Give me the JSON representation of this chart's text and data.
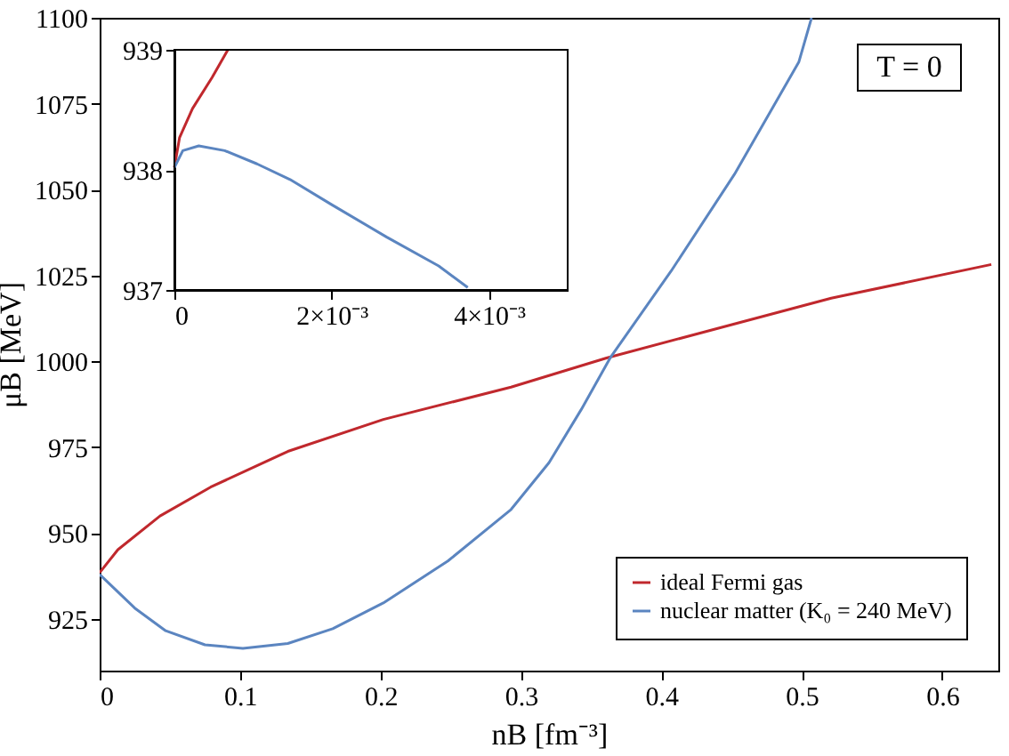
{
  "chart_data": [
    {
      "type": "line",
      "xlabel": "nB [fm⁻³]",
      "ylabel": "μB [MeV]",
      "xlim": [
        0,
        0.64
      ],
      "ylim": [
        910,
        1100
      ],
      "xticks": [
        0,
        0.1,
        0.2,
        0.3,
        0.4,
        0.5,
        0.6
      ],
      "yticks": [
        925,
        950,
        975,
        1000,
        1025,
        1050,
        1075,
        1100
      ],
      "legend": "bottom right",
      "grid": false,
      "annotations": [
        "T = 0"
      ],
      "series": [
        {
          "name": "ideal Fermi gas",
          "color": "#c0282d",
          "x": [
            0,
            0.013,
            0.043,
            0.079,
            0.134,
            0.202,
            0.293,
            0.361,
            0.43,
            0.521,
            0.635
          ],
          "values": [
            938.5,
            945.2,
            955,
            963.4,
            973.8,
            983.1,
            992.5,
            1001,
            1008.5,
            1018.4,
            1028.2
          ]
        },
        {
          "name": "nuclear matter (K₀ = 240 MeV)",
          "color": "#5b85c0",
          "x": [
            0,
            0.025,
            0.047,
            0.075,
            0.102,
            0.134,
            0.166,
            0.202,
            0.248,
            0.293,
            0.32,
            0.343,
            0.364,
            0.407,
            0.452,
            0.498,
            0.507
          ],
          "values": [
            938,
            928.2,
            921.6,
            917.5,
            916.5,
            917.9,
            922.2,
            929.7,
            941.9,
            956.9,
            970.5,
            986,
            1001.3,
            1026.3,
            1054.4,
            1087.2,
            1100
          ]
        }
      ]
    },
    {
      "type": "line",
      "xlim": [
        0,
        0.005
      ],
      "ylim": [
        937,
        939
      ],
      "xticks": [
        0,
        {
          "value": 0.002,
          "label": "2×10⁻³"
        },
        {
          "value": 0.004,
          "label": "4×10⁻³"
        }
      ],
      "yticks": [
        937,
        938,
        939
      ],
      "legend": false,
      "grid": false,
      "series": [
        {
          "color": "#c0282d",
          "x": [
            0,
            6.6e-05,
            0.00023,
            0.00048,
            0.00068
          ],
          "values": [
            938.02,
            938.27,
            938.51,
            938.77,
            939
          ]
        },
        {
          "color": "#5b85c0",
          "x": [
            0,
            0.000107,
            0.00031,
            0.00064,
            0.00105,
            0.00147,
            0.002,
            0.0027,
            0.00336,
            0.00373
          ],
          "values": [
            938.02,
            938.16,
            938.2,
            938.16,
            938.05,
            937.92,
            937.71,
            937.44,
            937.2,
            937.02
          ]
        }
      ]
    }
  ]
}
